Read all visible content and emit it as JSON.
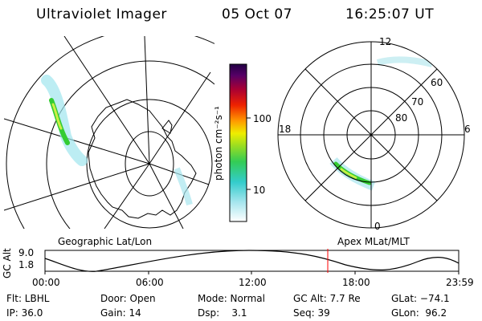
{
  "header": {
    "instrument": "Ultraviolet Imager",
    "date": "05 Oct 07",
    "time": "16:25:07 UT"
  },
  "colorbar": {
    "unit_label": "photon cm⁻²s⁻¹",
    "ticks": [
      "100",
      "10"
    ]
  },
  "polar": {
    "mlt_labels": [
      "12",
      "18",
      "6",
      "0"
    ],
    "lat_labels": [
      "60",
      "70",
      "80"
    ]
  },
  "panels": {
    "left_label": "Geographic Lat/Lon",
    "right_label": "Apex MLat/MLT"
  },
  "timeline": {
    "axis_label": "GC Alt",
    "y_ticks": [
      "9.0",
      "1.8"
    ],
    "x_ticks": [
      "00:00",
      "06:00",
      "12:00",
      "18:00",
      "23:59"
    ]
  },
  "footer": {
    "filter": "Flt: LBHL",
    "ip": "IP: 36.0",
    "door": "Door: Open",
    "gain": "Gain: 14",
    "mode": "Mode: Normal",
    "dsp": "Dsp:    3.1",
    "gcalt": "GC Alt: 7.7 Re",
    "seq": "Seq: 39",
    "glat": "GLat: −74.1",
    "glon": "GLon:  96.2"
  },
  "colors": {
    "cursor": "#ff0000",
    "aurora_bright": "#33cc33",
    "aurora_mid": "#ccee44",
    "aurora_dim": "#66ddcc"
  },
  "icons": {
    "coastline": "antarctica-outline"
  }
}
